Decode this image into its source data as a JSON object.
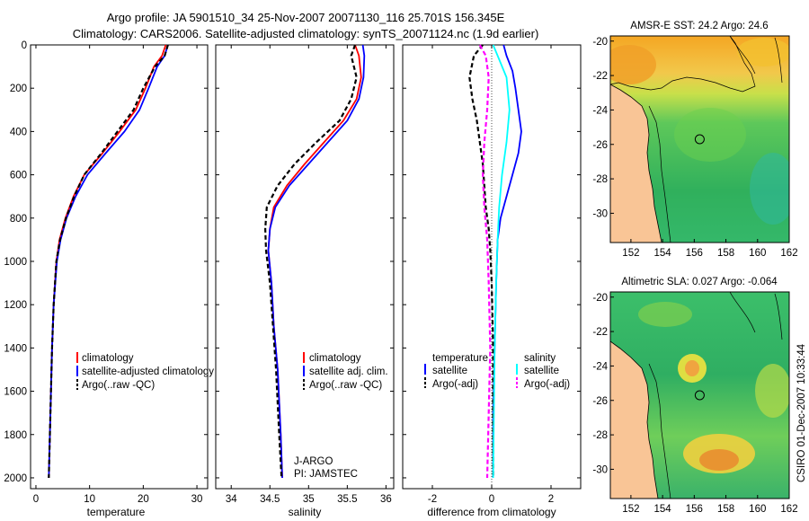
{
  "header": {
    "line1": "Argo profile: JA 5901510_34 25-Nov-2007 20071130_116 25.701S 156.345E",
    "line2": "Climatology: CARS2006. Satellite-adjusted climatology: synTS_20071124.nc (1.9d earlier)"
  },
  "stamp": "CSIRO 01-Dec-2007 10:33:44",
  "colors": {
    "red": "#ff0000",
    "blue": "#0000ff",
    "black": "#000000",
    "cyan": "#00ffff",
    "magenta": "#ff00ff",
    "land": "#f9c596",
    "dark_blue": "#0000aa"
  },
  "chart_data": [
    {
      "type": "line",
      "title": "",
      "xlabel": "temperature",
      "ylabel": "",
      "xlim": [
        -1,
        32
      ],
      "ylim": [
        0,
        2050
      ],
      "y_inverted": true,
      "xticks": [
        0,
        10,
        20,
        30
      ],
      "yticks": [
        0,
        200,
        400,
        600,
        800,
        1000,
        1200,
        1400,
        1600,
        1800,
        2000
      ],
      "legend_labels": [
        "climatology",
        "satellite-adjusted climatology",
        "Argo(..raw -QC)"
      ],
      "series": [
        {
          "name": "climatology",
          "color": "red",
          "x": [
            24.2,
            23.5,
            22.0,
            20.4,
            18.6,
            15.6,
            12.4,
            9.0,
            7.0,
            5.5,
            4.4,
            3.8,
            3.3,
            3.0,
            2.8,
            2.6,
            2.4
          ],
          "y": [
            0,
            50,
            100,
            200,
            300,
            400,
            500,
            600,
            700,
            800,
            900,
            1000,
            1200,
            1400,
            1600,
            1800,
            2000
          ]
        },
        {
          "name": "satellite-adjusted climatology",
          "color": "blue",
          "x": [
            24.6,
            24.0,
            22.6,
            21.0,
            19.3,
            16.5,
            13.0,
            9.6,
            7.4,
            5.7,
            4.6,
            3.9,
            3.3,
            3.0,
            2.8,
            2.6,
            2.4
          ],
          "y": [
            0,
            50,
            100,
            200,
            300,
            400,
            500,
            600,
            700,
            800,
            900,
            1000,
            1200,
            1400,
            1600,
            1800,
            2000
          ]
        },
        {
          "name": "Argo(..raw -QC)",
          "color": "black",
          "dash": true,
          "x": [
            24.6,
            24.0,
            22.2,
            20.0,
            18.2,
            15.2,
            12.2,
            9.0,
            7.1,
            5.6,
            4.5,
            3.8,
            3.3,
            3.0,
            2.8,
            2.6,
            2.4
          ],
          "y": [
            0,
            50,
            100,
            200,
            300,
            400,
            500,
            600,
            700,
            800,
            900,
            1000,
            1200,
            1400,
            1600,
            1800,
            2000
          ]
        }
      ]
    },
    {
      "type": "line",
      "title": "",
      "xlabel": "salinity",
      "ylabel": "",
      "xlim": [
        33.8,
        36.1
      ],
      "ylim": [
        0,
        2050
      ],
      "y_inverted": true,
      "xticks": [
        34,
        34.5,
        35,
        35.5,
        36
      ],
      "yticks": [
        0,
        200,
        400,
        600,
        800,
        1000,
        1200,
        1400,
        1600,
        1800,
        2000
      ],
      "legend_labels": [
        "climatology",
        "satellite adj. clim.",
        "Argo(..raw -QC)"
      ],
      "annotation": [
        "J-ARGO",
        "PI: JAMSTEC"
      ],
      "series": [
        {
          "name": "climatology",
          "color": "red",
          "x": [
            35.6,
            35.65,
            35.68,
            35.62,
            35.45,
            35.2,
            34.95,
            34.72,
            34.55,
            34.5,
            34.48,
            34.52,
            34.55,
            34.6,
            34.64,
            34.66
          ],
          "y": [
            0,
            50,
            150,
            250,
            350,
            450,
            550,
            650,
            750,
            850,
            950,
            1100,
            1300,
            1500,
            1800,
            2000
          ]
        },
        {
          "name": "satellite adj. clim.",
          "color": "blue",
          "x": [
            35.7,
            35.72,
            35.71,
            35.65,
            35.5,
            35.25,
            35.0,
            34.75,
            34.57,
            34.5,
            34.48,
            34.52,
            34.55,
            34.6,
            34.64,
            34.66
          ],
          "y": [
            0,
            50,
            150,
            250,
            350,
            450,
            550,
            650,
            750,
            850,
            950,
            1100,
            1300,
            1500,
            1800,
            2000
          ]
        },
        {
          "name": "Argo(..raw -QC)",
          "color": "black",
          "dash": true,
          "x": [
            35.6,
            35.55,
            35.62,
            35.55,
            35.4,
            35.1,
            34.82,
            34.6,
            34.46,
            34.44,
            34.45,
            34.5,
            34.54,
            34.58,
            34.62,
            34.65
          ],
          "y": [
            0,
            50,
            150,
            250,
            350,
            450,
            550,
            650,
            750,
            850,
            950,
            1100,
            1300,
            1500,
            1800,
            2000
          ]
        }
      ]
    },
    {
      "type": "line",
      "title": "",
      "xlabel": "difference from climatology",
      "ylabel": "",
      "xlim": [
        -3,
        3
      ],
      "ylim": [
        0,
        2050
      ],
      "y_inverted": true,
      "xticks": [
        -2,
        0,
        2
      ],
      "yticks": [
        0,
        200,
        400,
        600,
        800,
        1000,
        1200,
        1400,
        1600,
        1800,
        2000
      ],
      "legend_headers": [
        "temperature",
        "salinity"
      ],
      "legend_labels": [
        "satellite",
        "Argo(-adj)",
        "satellite",
        "Argo(-adj)"
      ],
      "series": [
        {
          "name": "temperature satellite",
          "color": "blue",
          "x": [
            0.4,
            0.5,
            0.7,
            0.8,
            0.9,
            1.0,
            0.9,
            0.7,
            0.5,
            0.3,
            0.2,
            0.15,
            0.1,
            0.05,
            0.05
          ],
          "y": [
            0,
            50,
            120,
            200,
            300,
            400,
            500,
            600,
            700,
            800,
            900,
            1100,
            1400,
            1700,
            2000
          ]
        },
        {
          "name": "temperature Argo(-adj)",
          "color": "black",
          "dash": true,
          "x": [
            -0.3,
            -0.6,
            -0.75,
            -0.65,
            -0.5,
            -0.4,
            -0.3,
            -0.25,
            -0.2,
            -0.1,
            -0.05,
            0.0,
            0.05,
            0.05,
            0.05
          ],
          "y": [
            0,
            50,
            150,
            250,
            350,
            450,
            550,
            650,
            750,
            850,
            950,
            1100,
            1400,
            1700,
            2000
          ]
        },
        {
          "name": "salinity satellite",
          "color": "cyan",
          "x": [
            0.05,
            0.2,
            0.5,
            0.6,
            0.5,
            0.35,
            0.25,
            0.2,
            0.15,
            0.1,
            0.05
          ],
          "y": [
            0,
            50,
            150,
            300,
            450,
            600,
            750,
            900,
            1100,
            1400,
            2000
          ]
        },
        {
          "name": "salinity Argo(-adj)",
          "color": "magenta",
          "dash": true,
          "x": [
            -0.4,
            -0.2,
            -0.1,
            -0.15,
            -0.25,
            -0.3,
            -0.25,
            -0.15,
            -0.1,
            -0.05,
            -0.1,
            -0.15
          ],
          "y": [
            0,
            50,
            150,
            300,
            450,
            600,
            750,
            900,
            1100,
            1400,
            1700,
            2000
          ]
        }
      ]
    },
    {
      "type": "heatmap",
      "title": "AMSR-E SST: 24.2  Argo: 24.6",
      "xlabel": "",
      "ylabel": "",
      "xlim": [
        150.7,
        162
      ],
      "ylim": [
        -31.7,
        -19.7
      ],
      "xticks": [
        152,
        154,
        156,
        158,
        160,
        162
      ],
      "yticks": [
        -20,
        -22,
        -24,
        -26,
        -28,
        -30
      ],
      "marker": {
        "lon": 156.345,
        "lat": -25.701
      }
    },
    {
      "type": "heatmap",
      "title": "Altimetric SLA: 0.027  Argo: -0.064",
      "xlabel": "",
      "ylabel": "",
      "xlim": [
        150.7,
        162
      ],
      "ylim": [
        -31.7,
        -19.7
      ],
      "xticks": [
        152,
        154,
        156,
        158,
        160,
        162
      ],
      "yticks": [
        -20,
        -22,
        -24,
        -26,
        -28,
        -30
      ],
      "marker": {
        "lon": 156.345,
        "lat": -25.701
      }
    }
  ]
}
